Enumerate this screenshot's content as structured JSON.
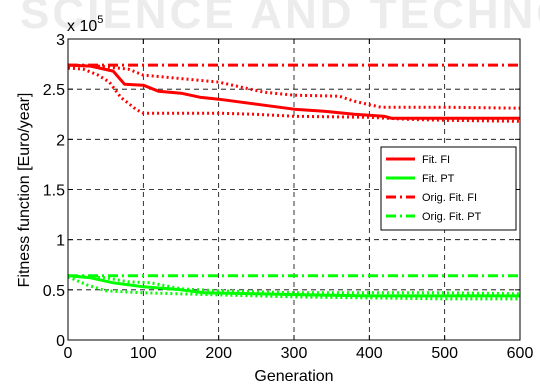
{
  "watermark": "SCIENCE AND TECHNOLOGY",
  "chart_data": {
    "type": "line",
    "title": "",
    "xlabel": "Generation",
    "ylabel": "Fitness function [Euro/year]",
    "y_multiplier": "x 10",
    "y_exponent": "5",
    "xlim": [
      0,
      600
    ],
    "ylim": [
      0,
      3
    ],
    "x_ticks": [
      "0",
      "100",
      "200",
      "300",
      "400",
      "500",
      "600"
    ],
    "y_ticks": [
      "0",
      "0.5",
      "1",
      "1.5",
      "2",
      "2.5",
      "3"
    ],
    "grid": true,
    "legend_position": "right",
    "series": [
      {
        "name": "Fit. FI",
        "style": "solid",
        "color": "#ff0000",
        "points": [
          [
            0,
            2.74
          ],
          [
            30,
            2.73
          ],
          [
            60,
            2.68
          ],
          [
            75,
            2.55
          ],
          [
            100,
            2.54
          ],
          [
            120,
            2.48
          ],
          [
            150,
            2.46
          ],
          [
            175,
            2.42
          ],
          [
            200,
            2.4
          ],
          [
            230,
            2.37
          ],
          [
            260,
            2.34
          ],
          [
            300,
            2.3
          ],
          [
            340,
            2.28
          ],
          [
            380,
            2.25
          ],
          [
            420,
            2.23
          ],
          [
            430,
            2.21
          ],
          [
            500,
            2.21
          ],
          [
            600,
            2.21
          ]
        ]
      },
      {
        "name": "Fit. FI",
        "style": "dotted",
        "color": "#ff0000",
        "points": [
          [
            0,
            2.71
          ],
          [
            20,
            2.7
          ],
          [
            40,
            2.64
          ],
          [
            55,
            2.57
          ],
          [
            70,
            2.42
          ],
          [
            90,
            2.3
          ],
          [
            100,
            2.26
          ],
          [
            200,
            2.26
          ],
          [
            250,
            2.25
          ],
          [
            300,
            2.23
          ],
          [
            400,
            2.22
          ],
          [
            450,
            2.2
          ],
          [
            500,
            2.19
          ],
          [
            600,
            2.18
          ]
        ]
      },
      {
        "name": "Fit. FI",
        "style": "dotted",
        "color": "#ff0000",
        "points": [
          [
            0,
            2.74
          ],
          [
            40,
            2.73
          ],
          [
            80,
            2.7
          ],
          [
            100,
            2.64
          ],
          [
            200,
            2.57
          ],
          [
            260,
            2.47
          ],
          [
            300,
            2.44
          ],
          [
            360,
            2.43
          ],
          [
            380,
            2.38
          ],
          [
            415,
            2.32
          ],
          [
            500,
            2.32
          ],
          [
            600,
            2.31
          ]
        ]
      },
      {
        "name": "Fit. PT",
        "style": "solid",
        "color": "#00ff00",
        "points": [
          [
            0,
            0.64
          ],
          [
            30,
            0.62
          ],
          [
            60,
            0.57
          ],
          [
            100,
            0.53
          ],
          [
            150,
            0.5
          ],
          [
            180,
            0.47
          ],
          [
            250,
            0.46
          ],
          [
            320,
            0.45
          ],
          [
            400,
            0.44
          ],
          [
            500,
            0.44
          ],
          [
            600,
            0.44
          ]
        ]
      },
      {
        "name": "Fit. PT",
        "style": "dotted",
        "color": "#00ff00",
        "points": [
          [
            0,
            0.63
          ],
          [
            25,
            0.55
          ],
          [
            50,
            0.49
          ],
          [
            100,
            0.47
          ],
          [
            200,
            0.45
          ],
          [
            300,
            0.43
          ],
          [
            400,
            0.42
          ],
          [
            500,
            0.41
          ],
          [
            600,
            0.41
          ]
        ]
      },
      {
        "name": "Fit. PT",
        "style": "dotted",
        "color": "#00ff00",
        "points": [
          [
            0,
            0.64
          ],
          [
            50,
            0.62
          ],
          [
            80,
            0.58
          ],
          [
            110,
            0.57
          ],
          [
            150,
            0.51
          ],
          [
            200,
            0.49
          ],
          [
            300,
            0.47
          ],
          [
            400,
            0.47
          ],
          [
            500,
            0.47
          ],
          [
            600,
            0.46
          ]
        ]
      },
      {
        "name": "Orig. Fit. FI",
        "style": "dashdot",
        "color": "#ff0000",
        "points": [
          [
            0,
            2.74
          ],
          [
            600,
            2.74
          ]
        ]
      },
      {
        "name": "Orig. Fit. PT",
        "style": "dashdot",
        "color": "#00ff00",
        "points": [
          [
            0,
            0.64
          ],
          [
            600,
            0.64
          ]
        ]
      }
    ],
    "legend": [
      {
        "label": "Fit. FI",
        "style": "solid",
        "color": "#ff0000"
      },
      {
        "label": "Fit. PT",
        "style": "solid",
        "color": "#00ff00"
      },
      {
        "label": "Orig. Fit. FI",
        "style": "dashdot",
        "color": "#ff0000"
      },
      {
        "label": "Orig. Fit. PT",
        "style": "dashdot",
        "color": "#00ff00"
      }
    ]
  }
}
